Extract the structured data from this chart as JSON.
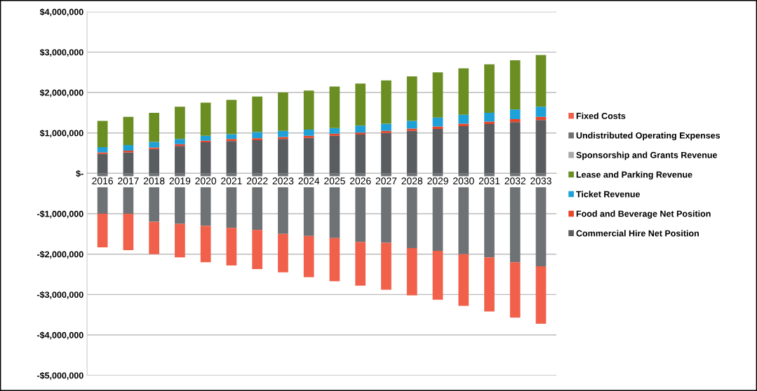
{
  "chart_data": {
    "type": "bar",
    "stacked": true,
    "categories": [
      "2016",
      "2017",
      "2018",
      "2019",
      "2020",
      "2021",
      "2022",
      "2023",
      "2024",
      "2025",
      "2026",
      "2027",
      "2028",
      "2029",
      "2030",
      "2031",
      "2032",
      "2033"
    ],
    "series": [
      {
        "name": "Commercial Hire Net Position",
        "color": "#5a5d60",
        "values": [
          480000,
          520000,
          600000,
          680000,
          770000,
          800000,
          820000,
          850000,
          880000,
          930000,
          960000,
          1000000,
          1050000,
          1100000,
          1170000,
          1220000,
          1270000,
          1320000
        ]
      },
      {
        "name": "Food and Beverage Net Position",
        "color": "#e8462a",
        "values": [
          40000,
          40000,
          40000,
          40000,
          40000,
          50000,
          50000,
          50000,
          50000,
          50000,
          50000,
          50000,
          60000,
          60000,
          60000,
          60000,
          70000,
          80000
        ]
      },
      {
        "name": "Ticket Revenue",
        "color": "#1ea0d8",
        "values": [
          130000,
          140000,
          140000,
          130000,
          120000,
          120000,
          150000,
          150000,
          150000,
          140000,
          170000,
          180000,
          190000,
          220000,
          220000,
          220000,
          240000,
          250000
        ]
      },
      {
        "name": "Lease and Parking Revenue",
        "color": "#6b8e23",
        "values": [
          650000,
          700000,
          720000,
          800000,
          820000,
          850000,
          880000,
          950000,
          970000,
          1030000,
          1040000,
          1070000,
          1100000,
          1120000,
          1150000,
          1200000,
          1220000,
          1280000
        ]
      },
      {
        "name": "Sponsorship and Grants Revenue",
        "color": "#a9a9a9",
        "values": [
          null,
          null,
          null,
          null,
          null,
          null,
          null,
          null,
          null,
          null,
          null,
          null,
          null,
          null,
          null,
          null,
          null,
          null
        ]
      },
      {
        "name": "Undistributed Operating Expenses",
        "color": "#6e7275",
        "values": [
          -1000000,
          -1000000,
          -1200000,
          -1250000,
          -1300000,
          -1350000,
          -1400000,
          -1500000,
          -1550000,
          -1600000,
          -1700000,
          -1720000,
          -1850000,
          -1920000,
          -2000000,
          -2080000,
          -2200000,
          -2300000
        ]
      },
      {
        "name": "Fixed Costs",
        "color": "#f0604a",
        "values": [
          -830000,
          -900000,
          -800000,
          -830000,
          -900000,
          -930000,
          -970000,
          -950000,
          -1020000,
          -1070000,
          -1080000,
          -1160000,
          -1170000,
          -1210000,
          -1280000,
          -1340000,
          -1370000,
          -1420000
        ]
      }
    ],
    "ylim": [
      -5000000,
      4000000
    ],
    "yticks": [
      {
        "value": -5000000,
        "label": "-$5,000,000"
      },
      {
        "value": -4000000,
        "label": "-$4,000,000"
      },
      {
        "value": -3000000,
        "label": "-$3,000,000"
      },
      {
        "value": -2000000,
        "label": "-$2,000,000"
      },
      {
        "value": -1000000,
        "label": "-$1,000,000"
      },
      {
        "value": 0,
        "label": "$-"
      },
      {
        "value": 1000000,
        "label": "$1,000,000"
      },
      {
        "value": 2000000,
        "label": "$2,000,000"
      },
      {
        "value": 3000000,
        "label": "$3,000,000"
      },
      {
        "value": 4000000,
        "label": "$4,000,000"
      }
    ],
    "grid": "y",
    "legend": "right"
  }
}
